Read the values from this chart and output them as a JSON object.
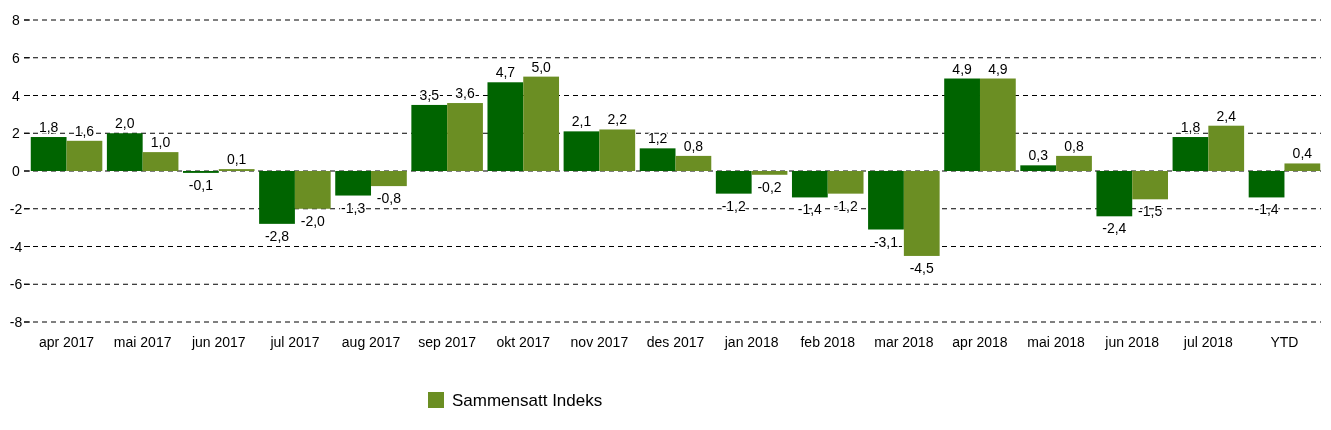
{
  "chart_data": {
    "type": "bar",
    "categories": [
      "apr 2017",
      "mai 2017",
      "jun 2017",
      "jul 2017",
      "aug 2017",
      "sep 2017",
      "okt 2017",
      "nov 2017",
      "des 2017",
      "jan 2018",
      "feb 2018",
      "mar 2018",
      "apr 2018",
      "mai 2018",
      "jun 2018",
      "jul 2018",
      "YTD"
    ],
    "series": [
      {
        "color": "#006400",
        "values": [
          1.8,
          2.0,
          -0.1,
          -2.8,
          -1.3,
          3.5,
          4.7,
          2.1,
          1.2,
          -1.2,
          -1.4,
          -3.1,
          4.9,
          0.3,
          -2.4,
          1.8,
          -1.4
        ],
        "value_labels": [
          "1,8",
          "2,0",
          "-0,1",
          "-2,8",
          "-1,3",
          "3,5",
          "4,7",
          "2,1",
          "1,2",
          "-1,2",
          "-1,4",
          "-3,1",
          "4,9",
          "0,3",
          "-2,4",
          "1,8",
          "-1,4"
        ]
      },
      {
        "name": "Sammensatt Indeks",
        "color": "#6b8e23",
        "values": [
          1.6,
          1.0,
          0.1,
          -2.0,
          -0.8,
          3.6,
          5.0,
          2.2,
          0.8,
          -0.2,
          -1.2,
          -4.5,
          4.9,
          0.8,
          -1.5,
          2.4,
          0.4
        ],
        "value_labels": [
          "1,6",
          "1,0",
          "0,1",
          "-2,0",
          "-0,8",
          "3,6",
          "5,0",
          "2,2",
          "0,8",
          "-0,2",
          "-1,2",
          "-4,5",
          "4,9",
          "0,8",
          "-1,5",
          "2,4",
          "0,4"
        ]
      }
    ],
    "ylim": [
      -8,
      8
    ],
    "yticks": [
      -8,
      -6,
      -4,
      -2,
      0,
      2,
      4,
      6,
      8
    ],
    "grid": "y",
    "legend": "bottom"
  }
}
